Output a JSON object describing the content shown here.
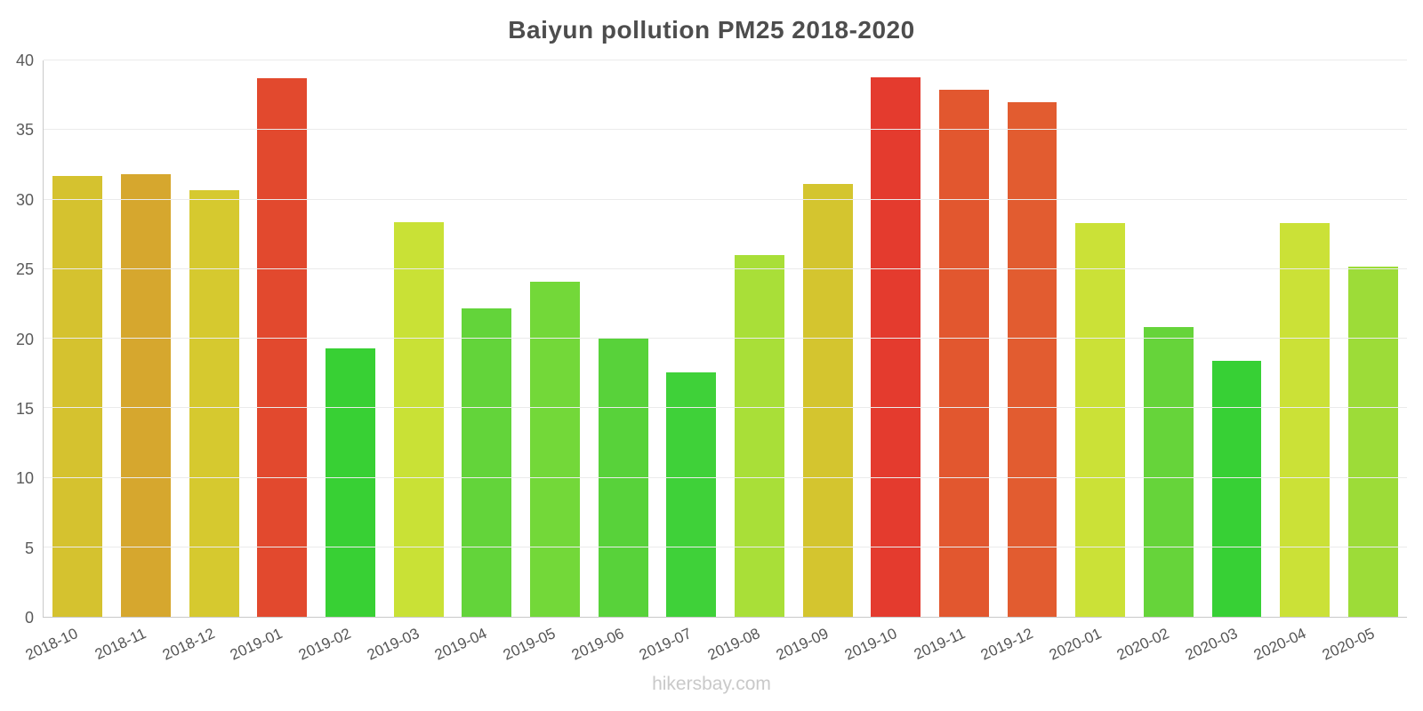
{
  "chart_data": {
    "type": "bar",
    "title": "Baiyun pollution PM25 2018-2020",
    "categories": [
      "2018-10",
      "2018-11",
      "2018-12",
      "2019-01",
      "2019-02",
      "2019-03",
      "2019-04",
      "2019-05",
      "2019-06",
      "2019-07",
      "2019-08",
      "2019-09",
      "2019-10",
      "2019-11",
      "2019-12",
      "2020-01",
      "2020-02",
      "2020-03",
      "2020-04",
      "2020-05"
    ],
    "values": [
      31.7,
      31.8,
      30.7,
      38.7,
      19.3,
      28.4,
      22.2,
      24.1,
      20.0,
      17.6,
      26.0,
      31.1,
      38.8,
      37.9,
      37.0,
      28.3,
      20.8,
      18.4,
      28.3,
      25.2
    ],
    "colors": [
      "#d5c22f",
      "#d6a72e",
      "#d6c92f",
      "#e2492e",
      "#38d034",
      "#c9e136",
      "#63d43a",
      "#73d839",
      "#58d23a",
      "#3fd139",
      "#a9df38",
      "#d4c52f",
      "#e43b2e",
      "#e2572f",
      "#e25c30",
      "#cbe137",
      "#66d43a",
      "#37d035",
      "#cbe137",
      "#9ddc38"
    ],
    "xlabel": "",
    "ylabel": "",
    "ylim": [
      0,
      40
    ],
    "ytick_step": 5,
    "grid": true,
    "legend": "none"
  },
  "footer": {
    "text": "hikersbay.com"
  }
}
